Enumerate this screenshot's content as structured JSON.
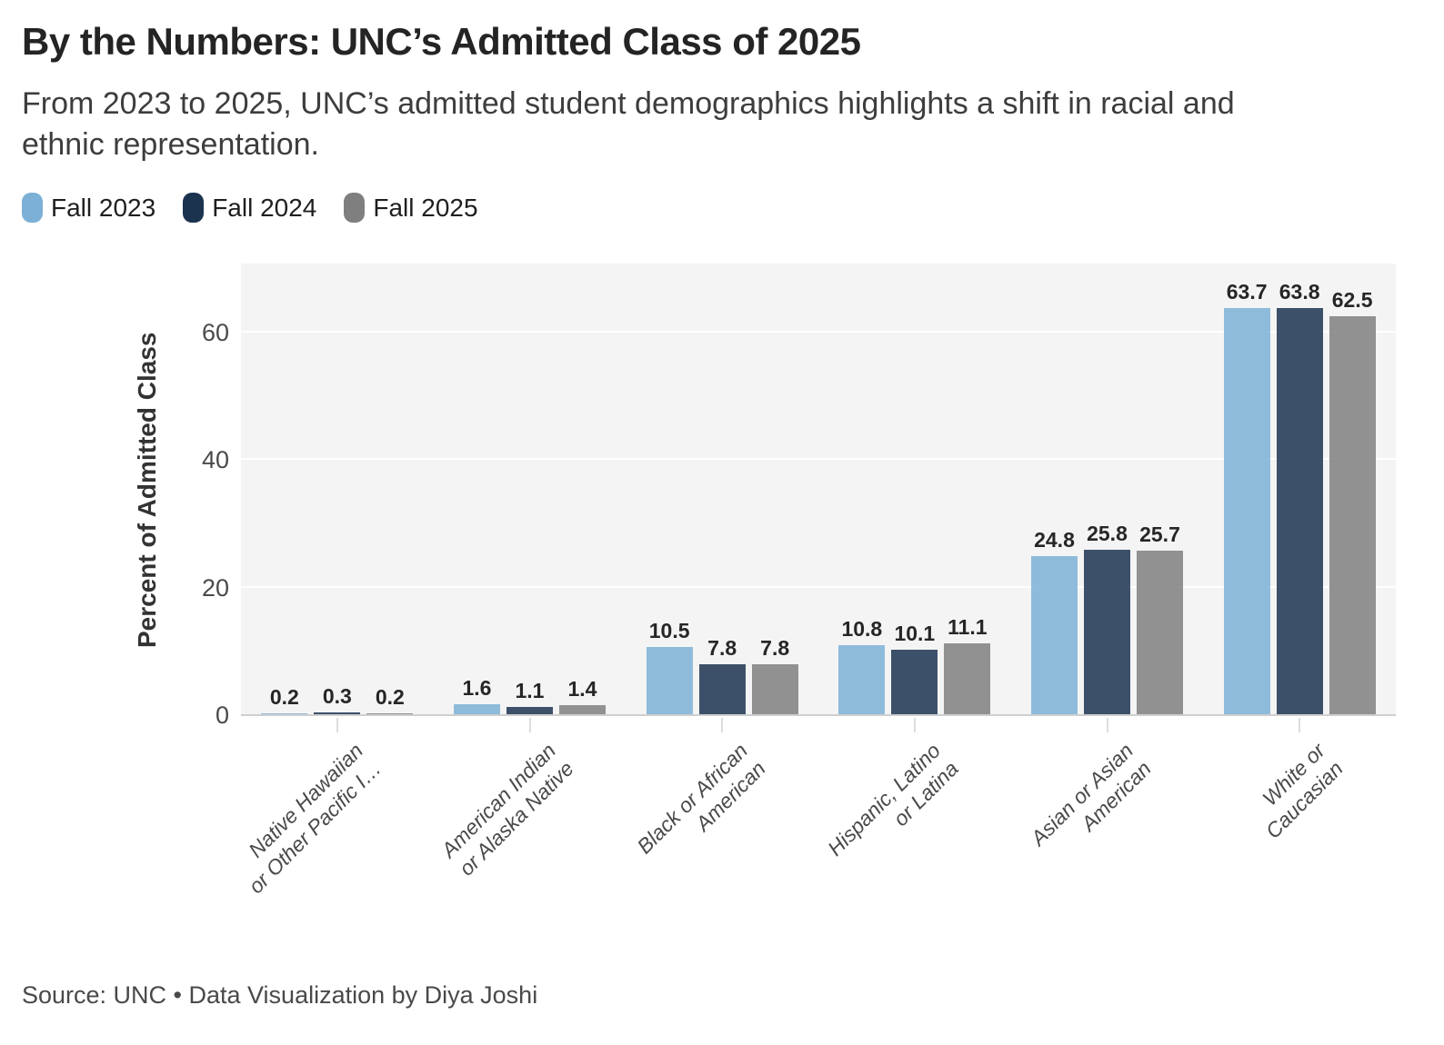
{
  "header": {
    "title": "By the Numbers: UNC’s Admitted Class of 2025",
    "subtitle": "From 2023 to 2025, UNC’s admitted student demographics highlights a shift in racial and ethnic representation."
  },
  "chart_data": {
    "type": "bar",
    "title": "By the Numbers: UNC’s Admitted Class of 2025",
    "subtitle": "From 2023 to 2025, UNC’s admitted student demographics highlights a shift in racial and ethnic representation.",
    "ylabel": "Percent of Admitted Class",
    "xlabel": "",
    "yticks": [
      0,
      20,
      40,
      60
    ],
    "ylim": [
      0,
      71
    ],
    "grid": true,
    "legend_position": "top-left",
    "plot_background": "#f4f4f4",
    "bar_opacity": 0.85,
    "categories": [
      {
        "label": "Native Hawaiian or Other Pacific I…",
        "line1": "Native Hawaiian",
        "line2": "or Other Pacific I…"
      },
      {
        "label": "American Indian or Alaska Native",
        "line1": "American Indian",
        "line2": "or Alaska Native"
      },
      {
        "label": "Black or African American",
        "line1": "Black or African",
        "line2": "American"
      },
      {
        "label": "Hispanic, Latino or Latina",
        "line1": "Hispanic, Latino",
        "line2": "or Latina"
      },
      {
        "label": "Asian or Asian American",
        "line1": "Asian or Asian",
        "line2": "American"
      },
      {
        "label": "White or Caucasian",
        "line1": "White or",
        "line2": "Caucasian"
      }
    ],
    "series": [
      {
        "name": "Fall 2023",
        "color": "#7CB0D6",
        "values": [
          0.2,
          1.6,
          10.5,
          10.8,
          24.8,
          63.7
        ]
      },
      {
        "name": "Fall 2024",
        "color": "#1C3350",
        "values": [
          0.3,
          1.1,
          7.8,
          10.1,
          25.8,
          63.8
        ]
      },
      {
        "name": "Fall 2025",
        "color": "#7F7F7F",
        "values": [
          0.2,
          1.4,
          7.8,
          11.1,
          25.7,
          62.5
        ]
      }
    ]
  },
  "footer": {
    "source": "Source: UNC • Data Visualization by Diya Joshi"
  }
}
